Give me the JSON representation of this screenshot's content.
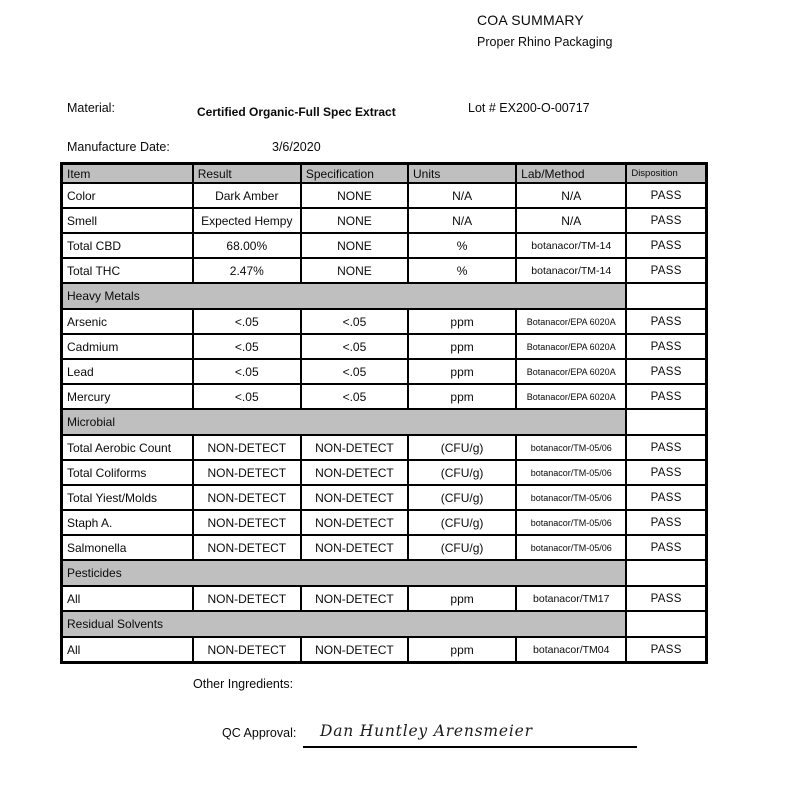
{
  "header": {
    "title": "COA SUMMARY",
    "subtitle": "Proper Rhino Packaging"
  },
  "info": {
    "material_label": "Material:",
    "material_value": "Certified Organic-Full Spec Extract",
    "lot_label": "Lot # EX200-O-00717",
    "manufacture_date_label": "Manufacture Date:",
    "manufacture_date_value": "3/6/2020"
  },
  "table": {
    "columns": [
      "Item",
      "Result",
      "Specification",
      "Units",
      "Lab/Method",
      "Disposition"
    ],
    "section_gray": "#bfbfbf",
    "rows": [
      {
        "type": "data",
        "item": "Color",
        "result": "Dark Amber",
        "spec": "NONE",
        "units": "N/A",
        "lab": "N/A",
        "disposition": "PASS"
      },
      {
        "type": "data",
        "item": "Smell",
        "result": "Expected Hempy",
        "spec": "NONE",
        "units": "N/A",
        "lab": "N/A",
        "disposition": "PASS"
      },
      {
        "type": "data",
        "item": "Total CBD",
        "result": "68.00%",
        "spec": "NONE",
        "units": "%",
        "lab": "botanacor/TM-14",
        "disposition": "PASS"
      },
      {
        "type": "data",
        "item": "Total THC",
        "result": "2.47%",
        "spec": "NONE",
        "units": "%",
        "lab": "botanacor/TM-14",
        "disposition": "PASS"
      },
      {
        "type": "section",
        "item": "Heavy Metals"
      },
      {
        "type": "data",
        "item": "Arsenic",
        "result": "<.05",
        "spec": "<.05",
        "units": "ppm",
        "lab": "Botanacor/EPA 6020A",
        "disposition": "PASS"
      },
      {
        "type": "data",
        "item": "Cadmium",
        "result": "<.05",
        "spec": "<.05",
        "units": "ppm",
        "lab": "Botanacor/EPA 6020A",
        "disposition": "PASS"
      },
      {
        "type": "data",
        "item": "Lead",
        "result": "<.05",
        "spec": "<.05",
        "units": "ppm",
        "lab": "Botanacor/EPA 6020A",
        "disposition": "PASS"
      },
      {
        "type": "data",
        "item": "Mercury",
        "result": "<.05",
        "spec": "<.05",
        "units": "ppm",
        "lab": "Botanacor/EPA 6020A",
        "disposition": "PASS"
      },
      {
        "type": "section",
        "item": "Microbial"
      },
      {
        "type": "data",
        "item": "Total Aerobic Count",
        "result": "NON-DETECT",
        "spec": "NON-DETECT",
        "units": "(CFU/g)",
        "lab": "botanacor/TM-05/06",
        "disposition": "PASS"
      },
      {
        "type": "data",
        "item": "Total Coliforms",
        "result": "NON-DETECT",
        "spec": "NON-DETECT",
        "units": "(CFU/g)",
        "lab": "botanacor/TM-05/06",
        "disposition": "PASS"
      },
      {
        "type": "data",
        "item": "Total Yiest/Molds",
        "result": "NON-DETECT",
        "spec": "NON-DETECT",
        "units": "(CFU/g)",
        "lab": "botanacor/TM-05/06",
        "disposition": "PASS"
      },
      {
        "type": "data",
        "item": "Staph A.",
        "result": "NON-DETECT",
        "spec": "NON-DETECT",
        "units": "(CFU/g)",
        "lab": "botanacor/TM-05/06",
        "disposition": "PASS"
      },
      {
        "type": "data",
        "item": "Salmonella",
        "result": "NON-DETECT",
        "spec": "NON-DETECT",
        "units": "(CFU/g)",
        "lab": "botanacor/TM-05/06",
        "disposition": "PASS"
      },
      {
        "type": "section",
        "item": "Pesticides"
      },
      {
        "type": "data",
        "item": "All",
        "result": "NON-DETECT",
        "spec": "NON-DETECT",
        "units": "ppm",
        "lab": "botanacor/TM17",
        "disposition": "PASS"
      },
      {
        "type": "section",
        "item": "Residual Solvents"
      },
      {
        "type": "data",
        "item": "All",
        "result": "NON-DETECT",
        "spec": "NON-DETECT",
        "units": "ppm",
        "lab": "botanacor/TM04",
        "disposition": "PASS"
      }
    ]
  },
  "footer": {
    "other_ingredients_label": "Other Ingredients:",
    "qc_approval_label": "QC Approval:",
    "qc_signature": "Dan Huntley Arensmeier"
  }
}
